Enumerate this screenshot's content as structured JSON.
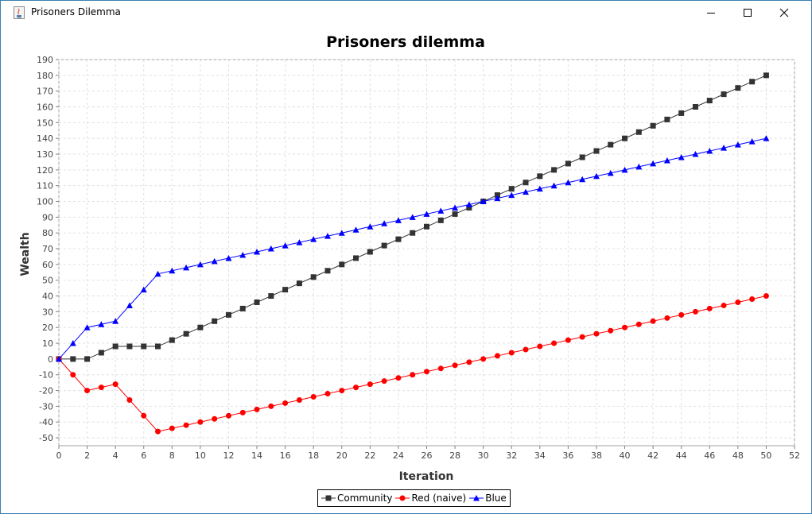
{
  "window": {
    "title": "Prisoners Dilemma",
    "app_icon": "java-cup-icon",
    "controls": [
      "minimize-icon",
      "maximize-icon",
      "close-icon"
    ]
  },
  "chart_data": {
    "type": "line",
    "title": "Prisoners dilemma",
    "xlabel": "Iteration",
    "ylabel": "Wealth",
    "xlim": [
      0,
      52
    ],
    "ylim": [
      -55,
      190
    ],
    "x_ticks": [
      "0",
      "2",
      "4",
      "6",
      "8",
      "10",
      "12",
      "14",
      "16",
      "18",
      "20",
      "22",
      "24",
      "26",
      "28",
      "30",
      "32",
      "34",
      "36",
      "38",
      "40",
      "42",
      "44",
      "46",
      "48",
      "50",
      "52"
    ],
    "y_ticks": [
      "190",
      "180",
      "170",
      "160",
      "150",
      "140",
      "130",
      "120",
      "110",
      "100",
      "90",
      "80",
      "70",
      "60",
      "50",
      "40",
      "30",
      "20",
      "10",
      "0",
      "-10",
      "-20",
      "-30",
      "-40",
      "-50"
    ],
    "grid": true,
    "legend_position": "bottom",
    "x": [
      0,
      1,
      2,
      3,
      4,
      5,
      6,
      7,
      8,
      9,
      10,
      11,
      12,
      13,
      14,
      15,
      16,
      17,
      18,
      19,
      20,
      21,
      22,
      23,
      24,
      25,
      26,
      27,
      28,
      29,
      30,
      31,
      32,
      33,
      34,
      35,
      36,
      37,
      38,
      39,
      40,
      41,
      42,
      43,
      44,
      45,
      46,
      47,
      48,
      49,
      50
    ],
    "series": [
      {
        "name": "Community",
        "color": "#333333",
        "marker": "square",
        "values": [
          0,
          0,
          0,
          4,
          8,
          8,
          8,
          8,
          12,
          16,
          20,
          24,
          28,
          32,
          36,
          40,
          44,
          48,
          52,
          56,
          60,
          64,
          68,
          72,
          76,
          80,
          84,
          88,
          92,
          96,
          100,
          104,
          108,
          112,
          116,
          120,
          124,
          128,
          132,
          136,
          140,
          144,
          148,
          152,
          156,
          160,
          164,
          168,
          172,
          176,
          180
        ]
      },
      {
        "name": "Red (naive)",
        "color": "#ff0000",
        "marker": "circle",
        "values": [
          0,
          -10,
          -20,
          -18,
          -16,
          -26,
          -36,
          -46,
          -44,
          -42,
          -40,
          -38,
          -36,
          -34,
          -32,
          -30,
          -28,
          -26,
          -24,
          -22,
          -20,
          -18,
          -16,
          -14,
          -12,
          -10,
          -8,
          -6,
          -4,
          -2,
          0,
          2,
          4,
          6,
          8,
          10,
          12,
          14,
          16,
          18,
          20,
          22,
          24,
          26,
          28,
          30,
          32,
          34,
          36,
          38,
          40
        ]
      },
      {
        "name": "Blue",
        "color": "#0000ff",
        "marker": "triangle",
        "values": [
          0,
          10,
          20,
          22,
          24,
          34,
          44,
          54,
          56,
          58,
          60,
          62,
          64,
          66,
          68,
          70,
          72,
          74,
          76,
          78,
          80,
          82,
          84,
          86,
          88,
          90,
          92,
          94,
          96,
          98,
          100,
          102,
          104,
          106,
          108,
          110,
          112,
          114,
          116,
          118,
          120,
          122,
          124,
          126,
          128,
          130,
          132,
          134,
          136,
          138,
          140
        ]
      }
    ]
  }
}
